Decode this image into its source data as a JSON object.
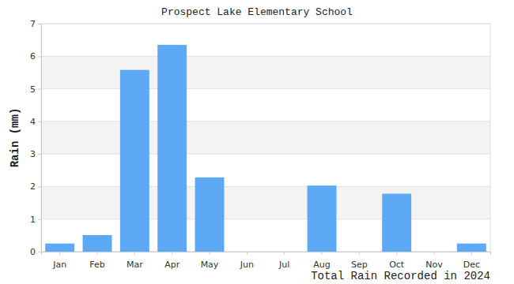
{
  "chart_data": {
    "type": "bar",
    "title": "Prospect Lake Elementary School",
    "subtitle": "Total Rain Recorded in 2024",
    "y_label": "Rain (mm)",
    "categories": [
      "Jan",
      "Feb",
      "Mar",
      "Apr",
      "May",
      "Jun",
      "Jul",
      "Aug",
      "Sep",
      "Oct",
      "Nov",
      "Dec"
    ],
    "values": [
      0.25,
      0.51,
      5.58,
      6.35,
      2.28,
      0,
      0,
      2.03,
      0,
      1.78,
      0,
      0.25
    ],
    "color": "#5ea9f5",
    "ylim": [
      0,
      7
    ],
    "yticks": [
      0,
      1,
      2,
      3,
      4,
      5,
      6,
      7
    ],
    "grid": true
  }
}
